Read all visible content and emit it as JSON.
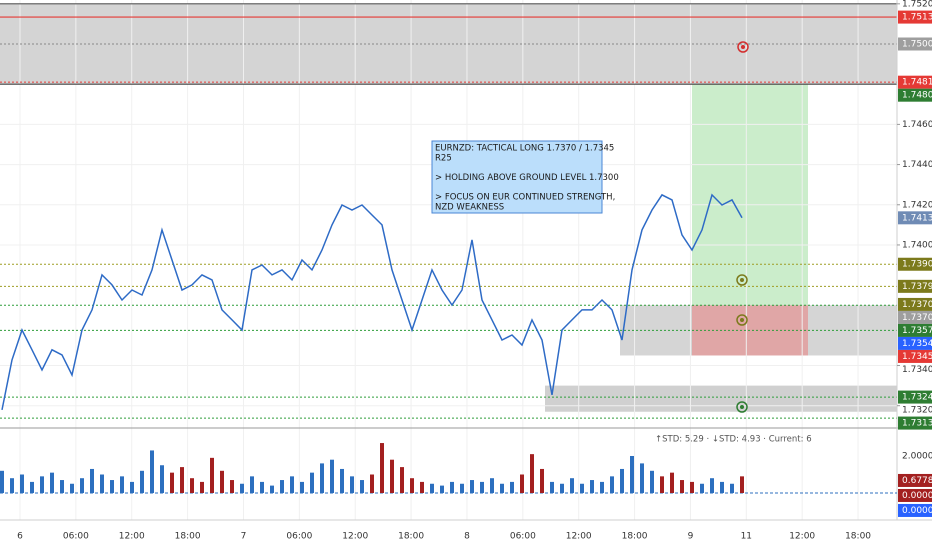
{
  "chart_data": {
    "type": "line",
    "grid": true,
    "ylim": [
      1.73104,
      1.75219
    ],
    "price": {
      "color": "#2e6bc6",
      "values": [
        1.73179,
        1.73428,
        1.73577,
        1.73478,
        1.73378,
        1.73478,
        1.73453,
        1.73353,
        1.73577,
        1.73677,
        1.73851,
        1.73801,
        1.73726,
        1.73776,
        1.73751,
        1.73876,
        1.74075,
        1.73925,
        1.73776,
        1.73801,
        1.73851,
        1.73826,
        1.73677,
        1.73627,
        1.73577,
        1.73876,
        1.739,
        1.73851,
        1.73876,
        1.73826,
        1.73925,
        1.73876,
        1.73975,
        1.741,
        1.74199,
        1.74174,
        1.74199,
        1.74149,
        1.741,
        1.73876,
        1.73726,
        1.73577,
        1.73726,
        1.73876,
        1.73776,
        1.73701,
        1.73776,
        1.74025,
        1.73726,
        1.73627,
        1.73527,
        1.73552,
        1.73502,
        1.73627,
        1.73527,
        1.73254,
        1.73577,
        1.73627,
        1.73677,
        1.73677,
        1.73726,
        1.73677,
        1.73527,
        1.73876,
        1.74075,
        1.74174,
        1.74249,
        1.74224,
        1.7405,
        1.73975,
        1.74075,
        1.74249,
        1.74199,
        1.74224,
        1.74135
      ]
    },
    "price_labels": [
      {
        "value": 1.752,
        "label": "1.75200",
        "line": "solid",
        "line_color": "#555555"
      },
      {
        "value": 1.75134,
        "label": "1.75134",
        "color": "#e53935",
        "line": "solid",
        "line_color": "#e53935"
      },
      {
        "value": 1.75,
        "label": "1.75000",
        "color": "#9e9e9e",
        "line": "dotted",
        "line_color": "#888888"
      },
      {
        "value": 1.7481,
        "label": "1.74810",
        "color": "#e53935",
        "line": "dotted",
        "line_color": "#e53935"
      },
      {
        "value": 1.748,
        "label": "1.74800",
        "color": "#2e7d32",
        "line": "solid",
        "line_color": "#444444"
      },
      {
        "value": 1.746,
        "label": "1.74600"
      },
      {
        "value": 1.744,
        "label": "1.74400"
      },
      {
        "value": 1.742,
        "label": "1.74200"
      },
      {
        "value": 1.74135,
        "label": "1.74135",
        "color": "#6f8bb5"
      },
      {
        "value": 1.74,
        "label": "1.74000"
      },
      {
        "value": 1.73904,
        "label": "1.73904",
        "color": "#7c7a1c",
        "line": "dotted",
        "line_color": "#9e9d24"
      },
      {
        "value": 1.73794,
        "label": "1.73794",
        "color": "#7c7a1c",
        "line": "dotted",
        "line_color": "#9e9d24"
      },
      {
        "value": 1.73704,
        "label": "1.73704",
        "color": "#7c7a1c"
      },
      {
        "value": 1.737,
        "label": "1.73700",
        "color": "#9e9e9e",
        "line": "dotted",
        "line_color": "#2e9d3a"
      },
      {
        "value": 1.73575,
        "label": "1.73575",
        "color": "#2e7d32",
        "line": "dotted",
        "line_color": "#2e9d3a"
      },
      {
        "value": 1.73546,
        "label": "1.73546",
        "color": "#2962ff"
      },
      {
        "value": 1.7345,
        "label": "1.73450",
        "color": "#e53935"
      },
      {
        "value": 1.734,
        "label": "1.73400"
      },
      {
        "value": 1.73243,
        "label": "1.73243",
        "color": "#2e7d32",
        "line": "dotted",
        "line_color": "#2e9d3a"
      },
      {
        "value": 1.732,
        "label": "1.73200"
      },
      {
        "value": 1.73138,
        "label": "1.73138",
        "color": "#2e7d32",
        "line": "dotted",
        "line_color": "#2e9d3a"
      }
    ],
    "zones": [
      {
        "top": 1.752,
        "bottom": 1.748,
        "color": "rgba(160,160,160,0.45)"
      },
      {
        "top": 1.748,
        "bottom": 1.737,
        "color": "rgba(140,215,140,0.45)"
      },
      {
        "top": 1.737,
        "bottom": 1.7345,
        "color": "rgba(150,150,150,0.4)"
      },
      {
        "top": 1.737,
        "bottom": 1.7345,
        "color": "rgba(235,120,120,0.5)"
      },
      {
        "top": 1.733,
        "bottom": 1.7317,
        "color": "rgba(150,150,150,0.45)"
      }
    ],
    "x_labels": [
      "6",
      "06:00",
      "12:00",
      "18:00",
      "7",
      "06:00",
      "12:00",
      "18:00",
      "8",
      "06:00",
      "12:00",
      "18:00",
      "9",
      "11",
      "12:00",
      "18:00"
    ],
    "annotation": {
      "lines": [
        "EURNZD: TACTICAL LONG 1.7370 / 1.7345",
        "R25",
        "> HOLDING ABOVE GROUND LEVEL 1.7300",
        "> FOCUS ON EUR CONTINUED STRENGTH,",
        "NZD WEAKNESS"
      ]
    },
    "indicator": {
      "title": "↑STD: 5.29 · ↓STD: 4.93 · Current: 6",
      "ylim": [
        -1.459,
        3.405
      ],
      "series": [
        {
          "color": "#2c6fbf",
          "values": [
            1.2,
            0.8,
            1.0,
            0.6,
            0.9,
            1.1,
            0.7,
            0.5,
            0.8,
            1.3,
            1.0,
            0.7,
            0.9,
            0.6,
            1.2,
            2.3,
            1.5,
            null,
            null,
            null,
            null,
            null,
            null,
            null,
            0.5,
            0.9,
            0.6,
            0.4,
            0.7,
            0.9,
            0.6,
            1.1,
            1.6,
            1.8,
            1.3,
            0.9,
            0.7,
            null,
            null,
            null,
            null,
            null,
            null,
            0.5,
            0.4,
            0.6,
            0.5,
            0.7,
            0.6,
            0.8,
            0.5,
            0.6,
            null,
            null,
            null,
            0.6,
            0.5,
            0.8,
            0.5,
            0.7,
            0.6,
            0.9,
            1.3,
            2.0,
            1.6,
            1.2,
            null,
            null,
            null,
            null,
            0.5,
            0.8,
            0.6,
            0.5,
            null
          ]
        },
        {
          "color": "#a32020",
          "values": [
            null,
            null,
            null,
            null,
            null,
            null,
            null,
            null,
            null,
            null,
            null,
            null,
            null,
            null,
            null,
            null,
            null,
            1.1,
            1.4,
            0.8,
            0.6,
            1.9,
            1.2,
            0.7,
            null,
            null,
            null,
            null,
            null,
            null,
            null,
            null,
            null,
            null,
            null,
            null,
            null,
            1.0,
            2.7,
            1.8,
            1.4,
            0.8,
            0.6,
            null,
            null,
            null,
            null,
            null,
            null,
            null,
            null,
            null,
            1.0,
            2.1,
            1.3,
            null,
            null,
            null,
            null,
            null,
            null,
            null,
            null,
            null,
            null,
            null,
            0.9,
            1.1,
            0.7,
            0.6,
            null,
            null,
            null,
            null,
            0.9
          ]
        }
      ],
      "labels": [
        {
          "value": 2,
          "label": "2.00000"
        },
        {
          "value": 0.67786,
          "label": "0.67786",
          "color": "#a32020"
        },
        {
          "value": 0,
          "label": "0.00000",
          "color": "#a32020"
        },
        {
          "value": 0,
          "label": "0.00000",
          "color": "#2962ff"
        }
      ]
    }
  }
}
